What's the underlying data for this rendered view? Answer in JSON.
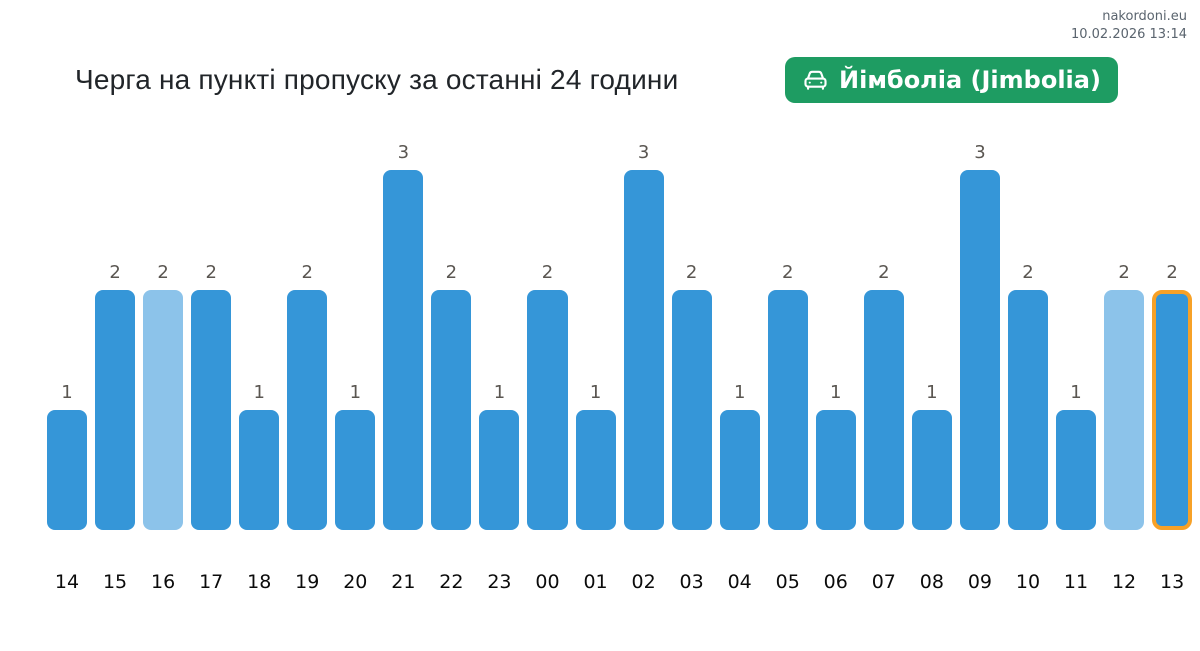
{
  "watermark": {
    "site": "nakordoni.eu",
    "timestamp": "10.02.2026 13:14"
  },
  "header": {
    "title": "Черга на пункті пропуску за останні 24 години",
    "badge": {
      "icon": "car-icon",
      "label": "Йімболіа (Jimbolia)"
    }
  },
  "chart_data": {
    "type": "bar",
    "title": "Черга на пункті пропуску за останні 24 години",
    "checkpoint": "Йімболіа (Jimbolia)",
    "xlabel": "",
    "ylabel": "",
    "ylim": [
      0,
      3
    ],
    "grid": false,
    "legend": "none",
    "value_labels_shown": true,
    "categories": [
      "14",
      "15",
      "16",
      "17",
      "18",
      "19",
      "20",
      "21",
      "22",
      "23",
      "00",
      "01",
      "02",
      "03",
      "04",
      "05",
      "06",
      "07",
      "08",
      "09",
      "10",
      "11",
      "12",
      "13"
    ],
    "values": [
      1,
      2,
      2,
      2,
      1,
      2,
      1,
      3,
      2,
      1,
      2,
      1,
      3,
      2,
      1,
      2,
      1,
      2,
      1,
      3,
      2,
      1,
      2,
      2
    ],
    "light_bar_indices": [
      2,
      22
    ],
    "highlighted_index": 23,
    "colors": {
      "bar": "#3596d8",
      "bar_light": "#8cc3ea",
      "highlight_border": "#f7a127",
      "value_label": "#5a5651",
      "axis_label": "#0b0b0b"
    }
  },
  "theme": {
    "background": "#ffffff",
    "badge_bg": "#1e9c62",
    "badge_text": "#ffffff",
    "title_color": "#212529",
    "watermark_color": "#5a646e"
  }
}
